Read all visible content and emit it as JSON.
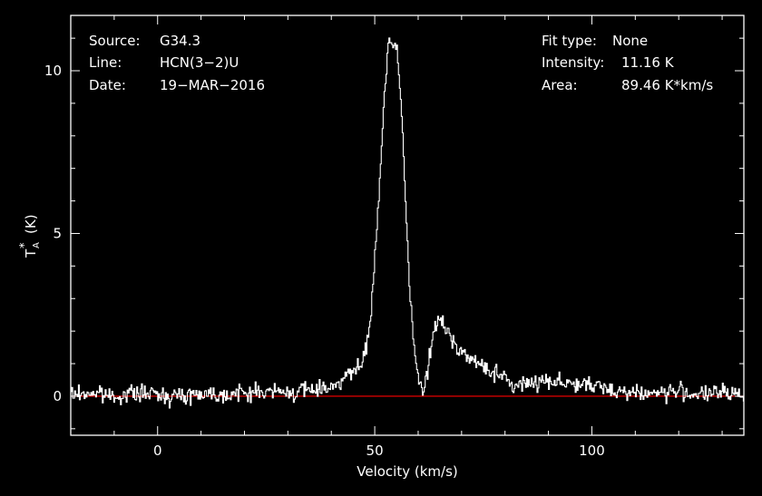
{
  "colors": {
    "background": "#000000",
    "foreground": "#ffffff",
    "baseline": "#ff0000"
  },
  "info_left": [
    {
      "label": "Source:",
      "value": "G34.3"
    },
    {
      "label": "Line:",
      "value": "HCN(3−2)U"
    },
    {
      "label": "Date:",
      "value": "19−MAR−2016"
    }
  ],
  "info_right": [
    {
      "label": "Fit type:",
      "value": "None"
    },
    {
      "label": "Intensity:",
      "value": "11.16 K"
    },
    {
      "label": "Area:",
      "value": "89.46 K*km/s"
    }
  ],
  "chart_data": {
    "type": "line",
    "title": "",
    "xlabel": "Velocity (km/s)",
    "ylabel_main": "T",
    "ylabel_sub": "A",
    "ylabel_sup": "*",
    "ylabel_unit": "(K)",
    "xlim": [
      -20,
      135
    ],
    "ylim": [
      -1.2,
      11.7
    ],
    "x_ticks": [
      0,
      50,
      100
    ],
    "y_ticks": [
      0,
      5,
      10
    ],
    "grid": false,
    "baseline_y": 0,
    "series": [
      {
        "x": [
          -20,
          -15,
          -10,
          -5,
          0,
          5,
          10,
          15,
          20,
          25,
          30,
          35,
          40,
          42,
          44,
          46,
          47,
          48,
          49,
          50,
          51,
          52,
          53,
          54,
          55,
          56,
          57,
          58,
          59,
          60,
          61,
          62,
          63,
          64,
          65,
          66,
          68,
          70,
          72,
          75,
          78,
          80,
          82,
          85,
          90,
          95,
          100,
          105,
          110,
          115,
          120,
          125,
          130,
          135
        ],
        "y": [
          0.05,
          0.1,
          0.0,
          0.1,
          0.05,
          0.0,
          0.1,
          0.05,
          0.1,
          0.15,
          0.1,
          0.2,
          0.3,
          0.5,
          0.7,
          0.8,
          1.0,
          1.5,
          2.5,
          4.3,
          6.5,
          9.0,
          10.6,
          10.9,
          10.6,
          9.0,
          6.0,
          3.2,
          1.5,
          0.4,
          0.1,
          0.7,
          1.6,
          2.3,
          2.3,
          2.1,
          1.7,
          1.4,
          1.1,
          0.9,
          0.7,
          0.5,
          0.3,
          0.4,
          0.5,
          0.4,
          0.3,
          0.2,
          0.1,
          0.1,
          0.15,
          0.05,
          0.1,
          0.05
        ]
      }
    ]
  }
}
